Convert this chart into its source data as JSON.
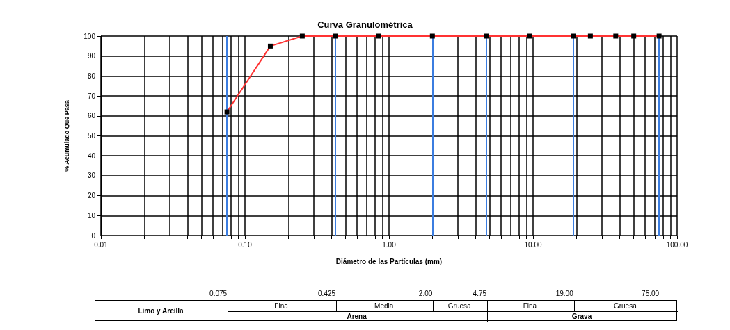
{
  "chart_data": {
    "type": "line",
    "title": "Curva Granulométrica",
    "xlabel": "Diámetro de las Partículas (mm)",
    "ylabel": "% Acumulado Que Pasa",
    "x": [
      0.075,
      0.15,
      0.25,
      0.425,
      0.85,
      2,
      4.75,
      9.5,
      19,
      25,
      37.5,
      50,
      75
    ],
    "series": [
      {
        "color": "#ff3333",
        "values": [
          62,
          95,
          100,
          100,
          100,
          100,
          100,
          100,
          100,
          100,
          100,
          100,
          100
        ]
      }
    ],
    "log": "x",
    "xlim": [
      0.01,
      100
    ],
    "xticks": [
      0.01,
      {
        "value": 0.1,
        "label": "0.10"
      },
      {
        "value": 1,
        "label": "1.00"
      },
      {
        "value": 10,
        "label": "10.00"
      },
      {
        "value": 100,
        "label": "100.00"
      }
    ],
    "ylim": [
      0,
      100
    ],
    "yticks": [
      0,
      10,
      20,
      30,
      40,
      50,
      60,
      70,
      80,
      90,
      100
    ],
    "grid": true,
    "marker": "square",
    "line_style": "solid",
    "ref_lines": [
      {
        "axis": "x",
        "value": 0.075,
        "color": "#3b7de0"
      },
      {
        "axis": "x",
        "value": 0.425,
        "color": "#3b7de0"
      },
      {
        "axis": "x",
        "value": 2,
        "color": "#3b7de0"
      },
      {
        "axis": "x",
        "value": 4.75,
        "color": "#3b7de0"
      },
      {
        "axis": "x",
        "value": 19,
        "color": "#3b7de0"
      },
      {
        "axis": "x",
        "value": 75,
        "color": "#3b7de0"
      }
    ],
    "annotations": [
      "0.075",
      "0.425",
      "2.00",
      "4.75",
      "19.00",
      "75.00",
      "Limo y Arcilla",
      "Fina",
      "Media",
      "Gruesa",
      "Arena",
      "Fina",
      "Gruesa",
      "Grava"
    ]
  }
}
